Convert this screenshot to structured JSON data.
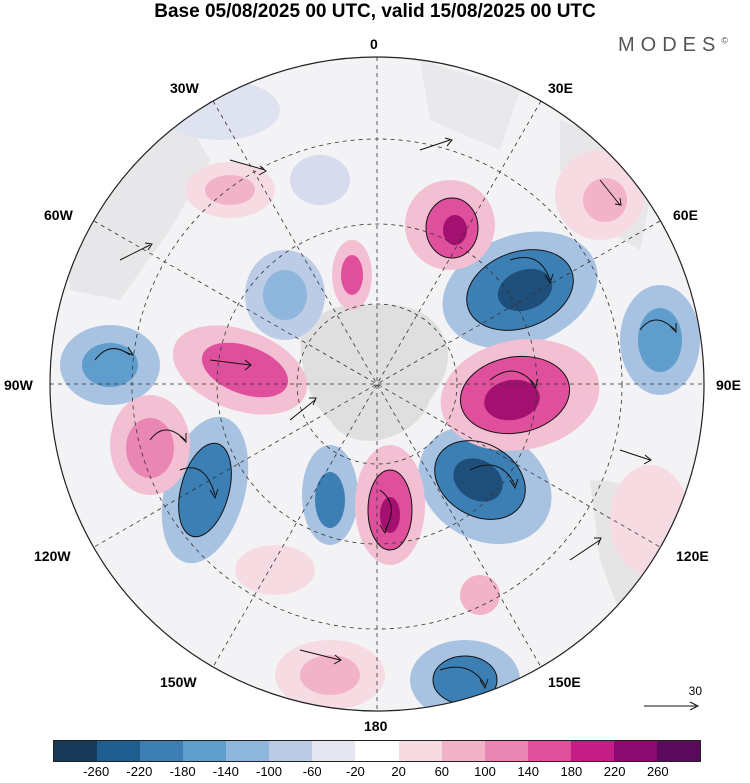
{
  "title": "Base 05/08/2025 00 UTC, valid 15/08/2025 00 UTC",
  "brand": "MODES",
  "brand_mark": "©",
  "longitude_labels": {
    "top": "0",
    "top_right": "30E",
    "right_upper": "60E",
    "right": "90E",
    "right_lower": "120E",
    "bottom_right": "150E",
    "bottom": "180",
    "bottom_left": "150W",
    "left_lower": "120W",
    "left": "90W",
    "left_upper": "60W",
    "top_left": "30W"
  },
  "reference_vector": {
    "label": "30"
  },
  "colorbar": {
    "tick_labels": [
      "-260",
      "-220",
      "-180",
      "-140",
      "-100",
      "-60",
      "-20",
      "20",
      "60",
      "100",
      "140",
      "180",
      "220",
      "260"
    ],
    "colors": [
      "#173a5a",
      "#1f5f8f",
      "#3d7fb4",
      "#5f9dcc",
      "#8fb6dc",
      "#bccce6",
      "#e6e6f2",
      "#ffffff",
      "#f6dce2",
      "#f2b3c8",
      "#ea86b4",
      "#df4f9c",
      "#c41d85",
      "#8a0a70",
      "#5a0a5a"
    ]
  },
  "colors": {
    "blue_dark": "#1e4f7a",
    "blue_mid": "#3c7fb5",
    "blue_light": "#a8c2e2",
    "pink_dark": "#a3106f",
    "pink_mid": "#df4f9c",
    "pink_light": "#f2c0d2",
    "land": "#dcdcdc"
  }
}
